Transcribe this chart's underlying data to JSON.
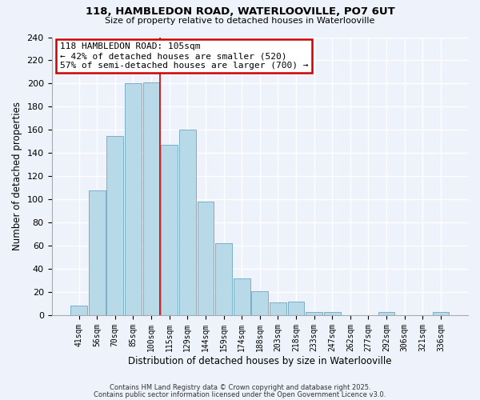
{
  "title_line1": "118, HAMBLEDON ROAD, WATERLOOVILLE, PO7 6UT",
  "title_line2": "Size of property relative to detached houses in Waterlooville",
  "xlabel": "Distribution of detached houses by size in Waterlooville",
  "ylabel": "Number of detached properties",
  "bar_labels": [
    "41sqm",
    "56sqm",
    "70sqm",
    "85sqm",
    "100sqm",
    "115sqm",
    "129sqm",
    "144sqm",
    "159sqm",
    "174sqm",
    "188sqm",
    "203sqm",
    "218sqm",
    "233sqm",
    "247sqm",
    "262sqm",
    "277sqm",
    "292sqm",
    "306sqm",
    "321sqm",
    "336sqm"
  ],
  "bar_values": [
    8,
    108,
    155,
    200,
    201,
    147,
    160,
    98,
    62,
    32,
    21,
    11,
    12,
    3,
    3,
    0,
    0,
    3,
    0,
    0,
    3
  ],
  "bar_color": "#b8d9e8",
  "bar_edge_color": "#7aafc8",
  "background_color": "#eef2fa",
  "grid_color": "#ffffff",
  "property_line_idx": 4,
  "property_label": "118 HAMBLEDON ROAD: 105sqm",
  "annotation_line2": "← 42% of detached houses are smaller (520)",
  "annotation_line3": "57% of semi-detached houses are larger (700) →",
  "annotation_box_color": "#ffffff",
  "annotation_box_edge": "#cc0000",
  "property_line_color": "#cc0000",
  "ylim": [
    0,
    240
  ],
  "yticks": [
    0,
    20,
    40,
    60,
    80,
    100,
    120,
    140,
    160,
    180,
    200,
    220,
    240
  ],
  "footer_line1": "Contains HM Land Registry data © Crown copyright and database right 2025.",
  "footer_line2": "Contains public sector information licensed under the Open Government Licence v3.0."
}
